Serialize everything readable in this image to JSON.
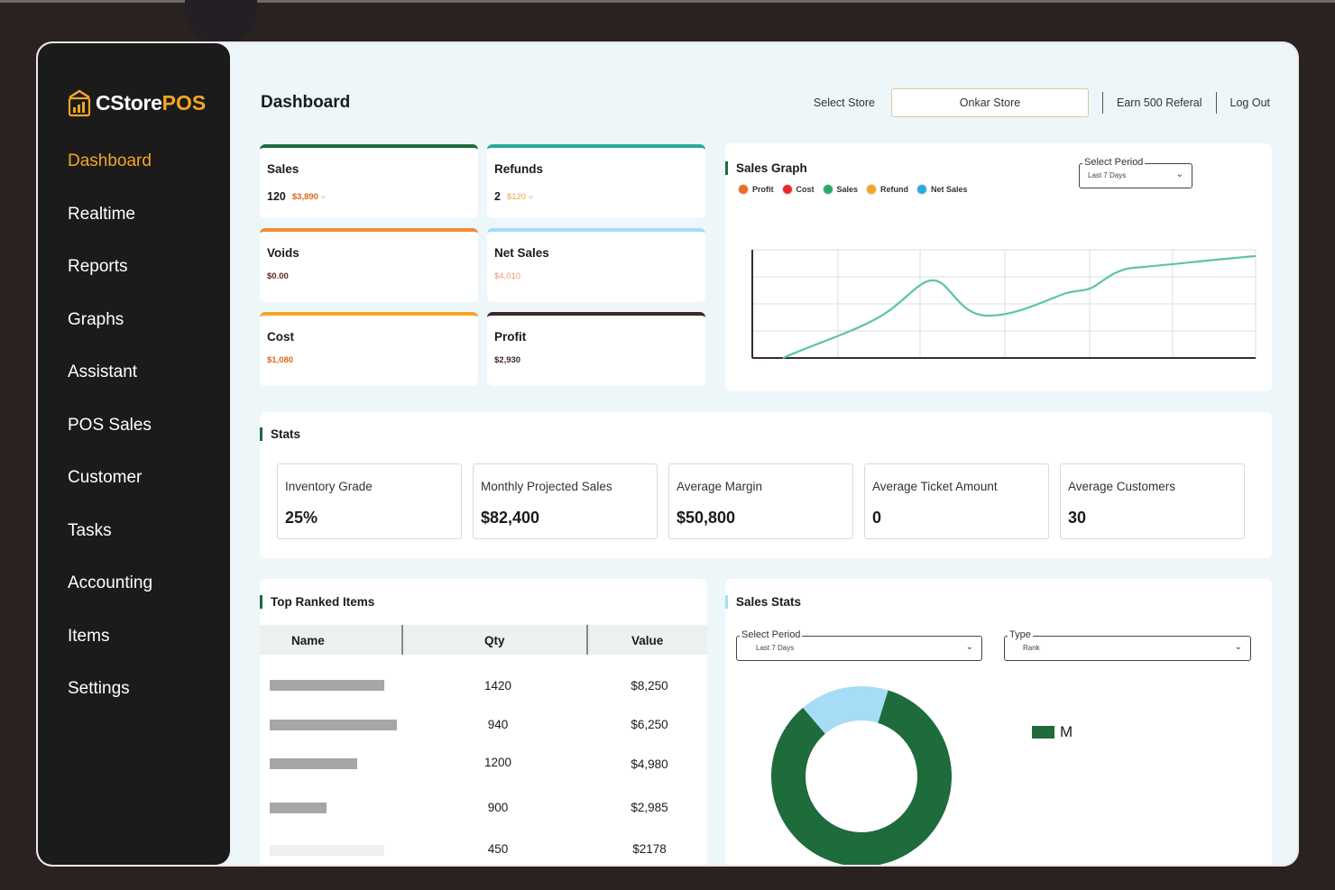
{
  "app": {
    "logo_main": "CStore",
    "logo_accent": "POS"
  },
  "sidebar": {
    "items": [
      {
        "label": "Dashboard",
        "active": true
      },
      {
        "label": "Realtime"
      },
      {
        "label": "Reports"
      },
      {
        "label": "Graphs"
      },
      {
        "label": "Assistant"
      },
      {
        "label": "POS Sales"
      },
      {
        "label": "Customer"
      },
      {
        "label": "Tasks"
      },
      {
        "label": "Accounting"
      },
      {
        "label": "Items"
      },
      {
        "label": "Settings"
      }
    ]
  },
  "header": {
    "title": "Dashboard",
    "select_store_label": "Select Store",
    "store_value": "Onkar Store",
    "referral": "Earn 500 Referal",
    "logout": "Log Out"
  },
  "metrics": {
    "sales": {
      "title": "Sales",
      "count": "120",
      "amount": "$3,890",
      "color": "#1e6b3c",
      "amount_color": "#e0661a"
    },
    "refunds": {
      "title": "Refunds",
      "count": "2",
      "amount": "$120",
      "color": "#27a99a",
      "amount_color": "#f0a24a"
    },
    "voids": {
      "title": "Voids",
      "amount": "$0.00",
      "color": "#ef8a3a",
      "amount_color": "#5a2a1a"
    },
    "net_sales": {
      "title": "Net Sales",
      "amount": "$4,010",
      "color": "#a6dcf5",
      "amount_color": "#f0957a"
    },
    "cost": {
      "title": "Cost",
      "amount": "$1,080",
      "color": "#f5a524",
      "amount_color": "#e0661a"
    },
    "profit": {
      "title": "Profit",
      "amount": "$2,930",
      "color": "#3b2a28",
      "amount_color": "#3b2a28"
    }
  },
  "sales_graph": {
    "title": "Sales Graph",
    "legend": [
      {
        "label": "Profit",
        "color": "#f26b1d"
      },
      {
        "label": "Cost",
        "color": "#e8262a"
      },
      {
        "label": "Sales",
        "color": "#27a96b"
      },
      {
        "label": "Refund",
        "color": "#f5a524"
      },
      {
        "label": "Net Sales",
        "color": "#2aa8e8"
      }
    ],
    "select_label": "Select Period",
    "select_value": "Last 7 Days",
    "line_color": "#5cc79a"
  },
  "stats": {
    "title": "Stats",
    "items": [
      {
        "label": "Inventory Grade",
        "value": "25%"
      },
      {
        "label": "Monthly Projected Sales",
        "value": "$82,400"
      },
      {
        "label": "Average Margin",
        "value": "$50,800"
      },
      {
        "label": "Average Ticket Amount",
        "value": "0"
      },
      {
        "label": "Average Customers",
        "value": "30"
      }
    ]
  },
  "top_items": {
    "title": "Top Ranked Items",
    "columns": [
      "Name",
      "Qty",
      "Value"
    ],
    "rows": [
      {
        "qty": "1420",
        "value": "$8,250"
      },
      {
        "qty": "940",
        "value": "$6,250"
      },
      {
        "qty": "1200",
        "value": "$4,980"
      },
      {
        "qty": "900",
        "value": "$2,985"
      },
      {
        "qty": "450",
        "value": "$2178"
      }
    ]
  },
  "sales_stats": {
    "title": "Sales Stats",
    "period_label": "Select Period",
    "period_value": "Last 7 Days",
    "type_label": "Type",
    "type_value": "Rank",
    "legend_label": "M",
    "donut": [
      {
        "share": 0.84,
        "color": "#1e6b3c"
      },
      {
        "share": 0.16,
        "color": "#a6dcf5"
      }
    ]
  }
}
